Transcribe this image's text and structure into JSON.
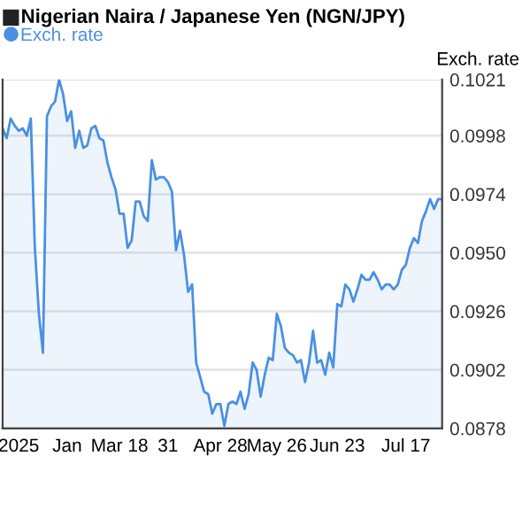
{
  "chart_data": {
    "type": "area",
    "title": "Nigerian Naira / Japanese Yen (NGN/JPY)",
    "ylabel": "Exch. rate",
    "categories": [
      null,
      null,
      null,
      null,
      "2025",
      null,
      null,
      null,
      null,
      null,
      null,
      null,
      null,
      null,
      null,
      null,
      "Jan",
      null,
      null,
      null,
      null,
      null,
      null,
      null,
      null,
      null,
      null,
      null,
      null,
      "Mar 18",
      null,
      null,
      null,
      null,
      null,
      null,
      null,
      null,
      null,
      null,
      null,
      "31",
      null,
      null,
      null,
      null,
      null,
      null,
      null,
      null,
      null,
      null,
      null,
      null,
      "Apr 28",
      null,
      null,
      null,
      null,
      null,
      null,
      null,
      null,
      null,
      null,
      null,
      null,
      null,
      "May 26",
      null,
      null,
      null,
      null,
      null,
      null,
      null,
      null,
      null,
      null,
      null,
      null,
      null,
      null,
      "Jun 23",
      null,
      null,
      null,
      null,
      null,
      null,
      null,
      null,
      null,
      null,
      null,
      null,
      null,
      null,
      null,
      null,
      "Jul 17",
      null,
      null,
      null,
      null,
      null,
      null,
      null,
      null,
      null
    ],
    "series": [
      {
        "name": "Exch. rate",
        "color": "#4a90e2",
        "values": [
          0.1001,
          0.0997,
          0.1005,
          0.1002,
          0.1,
          0.1001,
          0.0998,
          0.1005,
          0.0952,
          0.0925,
          0.0909,
          0.1006,
          0.101,
          0.1012,
          0.1021,
          0.1015,
          0.1004,
          0.1008,
          0.0993,
          0.1,
          0.0993,
          0.0994,
          0.1001,
          0.1002,
          0.0997,
          0.0996,
          0.0987,
          0.0981,
          0.0976,
          0.0966,
          0.0966,
          0.0952,
          0.0955,
          0.0971,
          0.0971,
          0.0965,
          0.0963,
          0.0988,
          0.098,
          0.0981,
          0.0981,
          0.0979,
          0.0975,
          0.0951,
          0.0959,
          0.0949,
          0.0934,
          0.0937,
          0.0905,
          0.0899,
          0.0893,
          0.0892,
          0.0884,
          0.0888,
          0.0888,
          0.0879,
          0.0888,
          0.0889,
          0.0888,
          0.0893,
          0.0886,
          0.0892,
          0.0905,
          0.0902,
          0.0891,
          0.09,
          0.0907,
          0.0906,
          0.0925,
          0.092,
          0.0911,
          0.0909,
          0.0908,
          0.0905,
          0.0906,
          0.0897,
          0.0905,
          0.0918,
          0.0905,
          0.0906,
          0.09,
          0.0909,
          0.0903,
          0.0929,
          0.0928,
          0.0937,
          0.0935,
          0.093,
          0.0935,
          0.0941,
          0.0939,
          0.0939,
          0.0942,
          0.0939,
          0.0935,
          0.0937,
          0.0937,
          0.0935,
          0.0937,
          0.0943,
          0.0945,
          0.0952,
          0.0956,
          0.0954,
          0.0963,
          0.0967,
          0.0972,
          0.0968,
          0.0972,
          0.0972
        ]
      }
    ],
    "ylim": [
      0.0878,
      0.1021
    ],
    "yticks": [
      {
        "value": 0.0878,
        "label": "0.0878"
      },
      {
        "value": 0.0902,
        "label": "0.0902"
      },
      {
        "value": 0.0926,
        "label": "0.0926"
      },
      {
        "value": 0.095,
        "label": "0.0950"
      },
      {
        "value": 0.0974,
        "label": "0.0974"
      },
      {
        "value": 0.0998,
        "label": "0.0998"
      },
      {
        "value": 0.1021,
        "label": "0.1021"
      }
    ],
    "grid": "y",
    "legend": "top left",
    "marker": "none",
    "line_style": "solid"
  }
}
